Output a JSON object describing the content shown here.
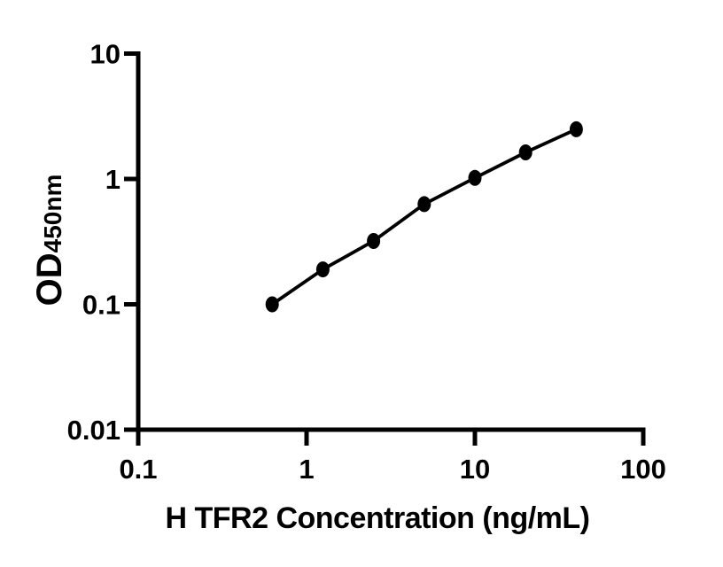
{
  "figure": {
    "background": "#ffffff",
    "foreground": "#000000"
  },
  "chart_data": {
    "type": "line",
    "title": "",
    "xlabel": "H TFR2 Concentration (ng/mL)",
    "ylabel": "OD450nm",
    "ylabel_main": "OD",
    "ylabel_sub": "450nm",
    "x_scale": "log",
    "y_scale": "log",
    "xlim": [
      0.1,
      100
    ],
    "ylim": [
      0.01,
      10
    ],
    "x_ticks": [
      "0.1",
      "1",
      "10",
      "100"
    ],
    "y_ticks": [
      "0.01",
      "0.1",
      "1",
      "10"
    ],
    "grid": false,
    "legend": false,
    "series": [
      {
        "x": [
          0.625,
          1.25,
          2.5,
          5,
          10,
          20,
          40
        ],
        "y": [
          0.1,
          0.19,
          0.32,
          0.63,
          1.02,
          1.63,
          2.49
        ],
        "marker": "filled-circle",
        "line_color": "#000000",
        "marker_color": "#000000"
      }
    ],
    "axis_color": "#000000"
  }
}
